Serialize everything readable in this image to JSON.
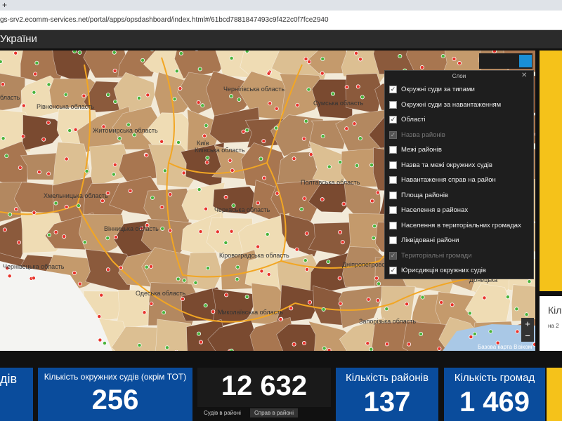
{
  "browser": {
    "tab_button": "+",
    "url": "gs-srv2.ecomm-services.net/portal/apps/opsdashboard/index.html#/61bcd7881847493c9f422c0f7fce2940"
  },
  "header": {
    "title": "України"
  },
  "map": {
    "labels": [
      "Чернігівська область",
      "Сумська область",
      "Рівненська область",
      "Житомирська область",
      "Київ",
      "Київська область",
      "Полтавська область",
      "Хмельницька область",
      "Черкаська область",
      "Вінницька область",
      "Кіровоградська область",
      "Дніпропетровсь",
      "Чернівецька область",
      "Одеська область",
      "Миколаївська область",
      "Запорізька область",
      "бласть",
      "Донецька"
    ],
    "zoom_in": "+",
    "zoom_out": "−",
    "attribution": "Базова карта Візіком"
  },
  "layers_panel": {
    "title": "Слои",
    "close": "✕",
    "items": [
      {
        "label": "Окружні суди за типами",
        "checked": true,
        "disabled": false
      },
      {
        "label": "Окружні суди за навантаженням",
        "checked": false,
        "disabled": false
      },
      {
        "label": "Області",
        "checked": true,
        "disabled": false
      },
      {
        "label": "Назва районів",
        "checked": true,
        "disabled": true
      },
      {
        "label": "Межі районів",
        "checked": false,
        "disabled": false
      },
      {
        "label": "Назва та межі окружних судів",
        "checked": false,
        "disabled": false
      },
      {
        "label": "Навантаження справ на район",
        "checked": false,
        "disabled": false
      },
      {
        "label": "Площа районів",
        "checked": false,
        "disabled": false
      },
      {
        "label": "Населення в районах",
        "checked": false,
        "disabled": false
      },
      {
        "label": "Населення в територіальних громадах",
        "checked": false,
        "disabled": false
      },
      {
        "label": "Ліквідовані райони",
        "checked": false,
        "disabled": false
      },
      {
        "label": "Територіальні громади",
        "checked": true,
        "disabled": true
      },
      {
        "label": "Юрисдикція окружних судів",
        "checked": true,
        "disabled": false
      }
    ]
  },
  "side_panel": {
    "title": "Кіл",
    "subtitle": "на 2"
  },
  "indicators": [
    {
      "title": "дів"
    },
    {
      "title": "Кількість окружних судів (окрім ТОТ)",
      "value": "256"
    },
    {
      "value": "12 632",
      "tabs": [
        "Судів в районі",
        "Справ в районі"
      ]
    },
    {
      "title": "Кількість районів",
      "value": "137"
    },
    {
      "title": "Кількість громад",
      "value": "1 469"
    }
  ]
}
